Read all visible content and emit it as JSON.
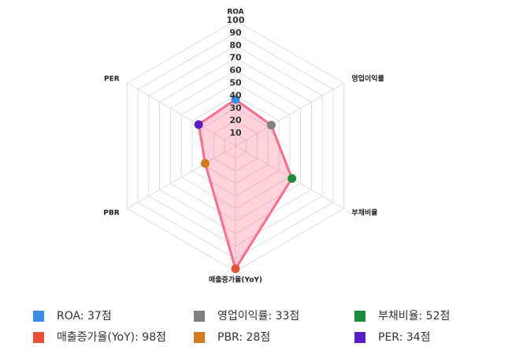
{
  "chart_data": {
    "type": "radar",
    "categories": [
      "ROA",
      "영업이익률",
      "부채비율",
      "매출증가율(YoY)",
      "PBR",
      "PER"
    ],
    "values": [
      37,
      33,
      52,
      98,
      28,
      34
    ],
    "value_labels": [
      "ROA: 37점",
      "영업이익률: 33점",
      "부채비율: 52점",
      "매출증가율(YoY): 98점",
      "PBR: 28점",
      "PER: 34점"
    ],
    "point_colors": [
      "#3a8ee6",
      "#808080",
      "#1a8c3a",
      "#e8503a",
      "#d47a1e",
      "#5a1ec8"
    ],
    "color": "#ff6b8b",
    "fill": "rgba(255,107,139,0.3)",
    "rlim": [
      0,
      100
    ],
    "rticks": [
      10,
      20,
      30,
      40,
      50,
      60,
      70,
      80,
      90,
      100
    ],
    "grid": true
  }
}
